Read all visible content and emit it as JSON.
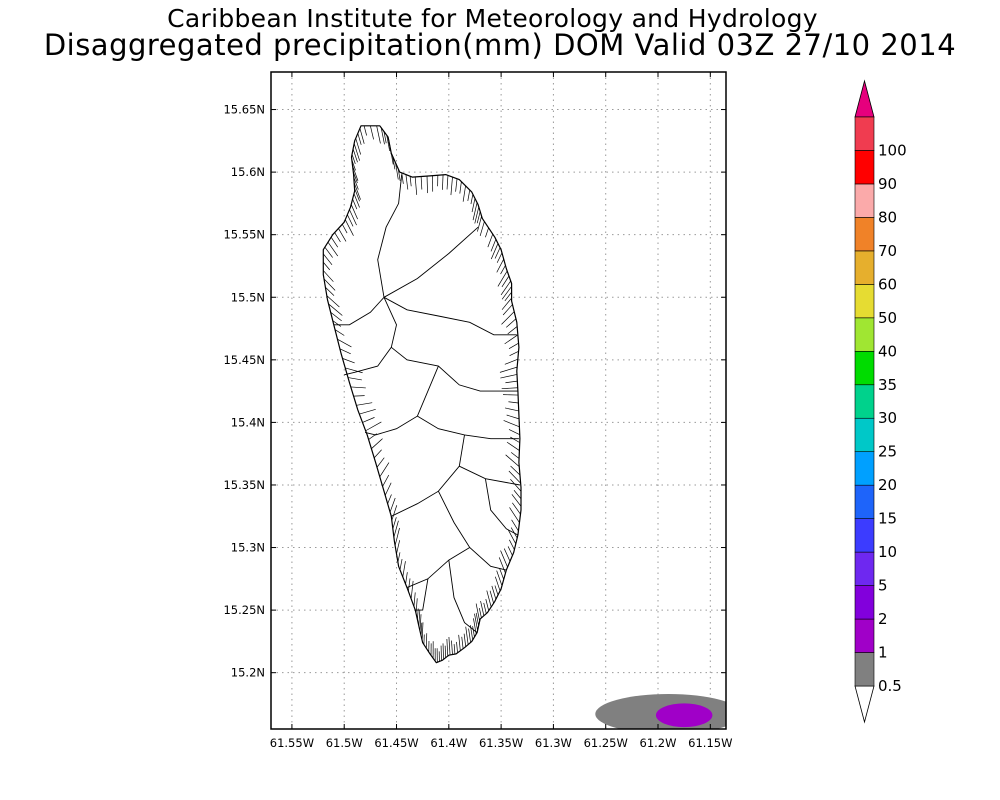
{
  "title": {
    "line1": "Caribbean Institute for Meteorology and Hydrology",
    "line2": "Disaggregated precipitation(mm) DOM Valid 03Z 27/10 2014"
  },
  "map": {
    "lon_range": [
      -61.57,
      -61.135
    ],
    "lat_range": [
      15.155,
      15.68
    ],
    "lon_ticks": [
      {
        "value": -61.55,
        "label": "61.55W"
      },
      {
        "value": -61.5,
        "label": "61.5W"
      },
      {
        "value": -61.45,
        "label": "61.45W"
      },
      {
        "value": -61.4,
        "label": "61.4W"
      },
      {
        "value": -61.35,
        "label": "61.35W"
      },
      {
        "value": -61.3,
        "label": "61.3W"
      },
      {
        "value": -61.25,
        "label": "61.25W"
      },
      {
        "value": -61.2,
        "label": "61.2W"
      },
      {
        "value": -61.15,
        "label": "61.15W"
      }
    ],
    "lat_ticks": [
      {
        "value": 15.2,
        "label": "15.2N"
      },
      {
        "value": 15.25,
        "label": "15.25N"
      },
      {
        "value": 15.3,
        "label": "15.3N"
      },
      {
        "value": 15.35,
        "label": "15.35N"
      },
      {
        "value": 15.4,
        "label": "15.4N"
      },
      {
        "value": 15.45,
        "label": "15.45N"
      },
      {
        "value": 15.5,
        "label": "15.5N"
      },
      {
        "value": 15.55,
        "label": "15.55N"
      },
      {
        "value": 15.6,
        "label": "15.6N"
      },
      {
        "value": 15.65,
        "label": "15.65N"
      }
    ],
    "grid": true,
    "island_outline": [
      [
        -61.484,
        15.637
      ],
      [
        -61.466,
        15.637
      ],
      [
        -61.458,
        15.628
      ],
      [
        -61.455,
        15.615
      ],
      [
        -61.447,
        15.6
      ],
      [
        -61.435,
        15.596
      ],
      [
        -61.418,
        15.597
      ],
      [
        -61.403,
        15.598
      ],
      [
        -61.39,
        15.594
      ],
      [
        -61.378,
        15.584
      ],
      [
        -61.372,
        15.574
      ],
      [
        -61.368,
        15.563
      ],
      [
        -61.356,
        15.548
      ],
      [
        -61.35,
        15.538
      ],
      [
        -61.345,
        15.523
      ],
      [
        -61.34,
        15.511
      ],
      [
        -61.34,
        15.497
      ],
      [
        -61.335,
        15.48
      ],
      [
        -61.333,
        15.46
      ],
      [
        -61.335,
        15.441
      ],
      [
        -61.334,
        15.425
      ],
      [
        -61.333,
        15.406
      ],
      [
        -61.332,
        15.387
      ],
      [
        -61.333,
        15.368
      ],
      [
        -61.331,
        15.348
      ],
      [
        -61.331,
        15.33
      ],
      [
        -61.334,
        15.31
      ],
      [
        -61.338,
        15.296
      ],
      [
        -61.345,
        15.282
      ],
      [
        -61.35,
        15.267
      ],
      [
        -61.356,
        15.257
      ],
      [
        -61.363,
        15.248
      ],
      [
        -61.37,
        15.243
      ],
      [
        -61.373,
        15.232
      ],
      [
        -61.378,
        15.225
      ],
      [
        -61.385,
        15.22
      ],
      [
        -61.393,
        15.215
      ],
      [
        -61.4,
        15.214
      ],
      [
        -61.406,
        15.21
      ],
      [
        -61.412,
        15.208
      ],
      [
        -61.418,
        15.215
      ],
      [
        -61.425,
        15.224
      ],
      [
        -61.428,
        15.235
      ],
      [
        -61.432,
        15.25
      ],
      [
        -61.44,
        15.268
      ],
      [
        -61.448,
        15.285
      ],
      [
        -61.452,
        15.305
      ],
      [
        -61.455,
        15.325
      ],
      [
        -61.462,
        15.345
      ],
      [
        -61.47,
        15.368
      ],
      [
        -61.478,
        15.39
      ],
      [
        -61.487,
        15.41
      ],
      [
        -61.495,
        15.432
      ],
      [
        -61.503,
        15.455
      ],
      [
        -61.51,
        15.478
      ],
      [
        -61.516,
        15.498
      ],
      [
        -61.52,
        15.518
      ],
      [
        -61.52,
        15.538
      ],
      [
        -61.511,
        15.55
      ],
      [
        -61.5,
        15.56
      ],
      [
        -61.494,
        15.572
      ],
      [
        -61.49,
        15.585
      ],
      [
        -61.491,
        15.598
      ],
      [
        -61.493,
        15.612
      ],
      [
        -61.49,
        15.625
      ]
    ],
    "internal_boundaries": [
      [
        [
          -61.445,
          15.598
        ],
        [
          -61.448,
          15.575
        ],
        [
          -61.46,
          15.556
        ],
        [
          -61.468,
          15.53
        ],
        [
          -61.462,
          15.5
        ]
      ],
      [
        [
          -61.462,
          15.5
        ],
        [
          -61.475,
          15.488
        ],
        [
          -61.495,
          15.478
        ],
        [
          -61.51,
          15.478
        ]
      ],
      [
        [
          -61.462,
          15.5
        ],
        [
          -61.43,
          15.515
        ],
        [
          -61.4,
          15.535
        ],
        [
          -61.372,
          15.556
        ]
      ],
      [
        [
          -61.462,
          15.5
        ],
        [
          -61.44,
          15.49
        ],
        [
          -61.41,
          15.485
        ],
        [
          -61.38,
          15.48
        ],
        [
          -61.357,
          15.47
        ],
        [
          -61.335,
          15.47
        ]
      ],
      [
        [
          -61.462,
          15.5
        ],
        [
          -61.45,
          15.478
        ],
        [
          -61.455,
          15.46
        ],
        [
          -61.468,
          15.445
        ],
        [
          -61.49,
          15.44
        ],
        [
          -61.5,
          15.438
        ]
      ],
      [
        [
          -61.455,
          15.46
        ],
        [
          -61.44,
          15.45
        ],
        [
          -61.41,
          15.445
        ],
        [
          -61.39,
          15.43
        ],
        [
          -61.37,
          15.425
        ],
        [
          -61.334,
          15.425
        ]
      ],
      [
        [
          -61.41,
          15.445
        ],
        [
          -61.42,
          15.425
        ],
        [
          -61.43,
          15.405
        ],
        [
          -61.45,
          15.395
        ],
        [
          -61.47,
          15.39
        ],
        [
          -61.48,
          15.392
        ]
      ],
      [
        [
          -61.43,
          15.405
        ],
        [
          -61.41,
          15.395
        ],
        [
          -61.385,
          15.39
        ],
        [
          -61.36,
          15.387
        ],
        [
          -61.333,
          15.387
        ]
      ],
      [
        [
          -61.385,
          15.39
        ],
        [
          -61.39,
          15.365
        ],
        [
          -61.41,
          15.345
        ],
        [
          -61.43,
          15.335
        ],
        [
          -61.455,
          15.325
        ]
      ],
      [
        [
          -61.39,
          15.365
        ],
        [
          -61.365,
          15.355
        ],
        [
          -61.332,
          15.35
        ]
      ],
      [
        [
          -61.41,
          15.345
        ],
        [
          -61.395,
          15.32
        ],
        [
          -61.38,
          15.3
        ],
        [
          -61.36,
          15.285
        ],
        [
          -61.345,
          15.282
        ]
      ],
      [
        [
          -61.38,
          15.3
        ],
        [
          -61.4,
          15.29
        ],
        [
          -61.42,
          15.275
        ],
        [
          -61.44,
          15.268
        ]
      ],
      [
        [
          -61.4,
          15.29
        ],
        [
          -61.395,
          15.26
        ],
        [
          -61.385,
          15.24
        ],
        [
          -61.373,
          15.232
        ]
      ],
      [
        [
          -61.42,
          15.275
        ],
        [
          -61.425,
          15.25
        ],
        [
          -61.432,
          15.25
        ]
      ],
      [
        [
          -61.365,
          15.355
        ],
        [
          -61.36,
          15.33
        ],
        [
          -61.345,
          15.315
        ],
        [
          -61.334,
          15.31
        ]
      ]
    ]
  },
  "precip_areas": [
    {
      "level_label": "0.5",
      "color": "#808080",
      "center": [
        -61.19,
        15.167
      ],
      "radii": [
        0.07,
        0.016
      ]
    },
    {
      "level_label": "1",
      "color": "#a000c8",
      "center": [
        -61.175,
        15.166
      ],
      "radii": [
        0.027,
        0.0095
      ]
    }
  ],
  "legend": {
    "bins": [
      {
        "label": "0.5",
        "color": "#808080"
      },
      {
        "label": "1",
        "color": "#a000c8"
      },
      {
        "label": "2",
        "color": "#8200dc"
      },
      {
        "label": "5",
        "color": "#6e28f0"
      },
      {
        "label": "10",
        "color": "#3c3cff"
      },
      {
        "label": "15",
        "color": "#1e64fa"
      },
      {
        "label": "20",
        "color": "#00a0ff"
      },
      {
        "label": "25",
        "color": "#00c8c8"
      },
      {
        "label": "30",
        "color": "#00d28c"
      },
      {
        "label": "35",
        "color": "#00dc00"
      },
      {
        "label": "40",
        "color": "#a0e632"
      },
      {
        "label": "50",
        "color": "#e6dc32"
      },
      {
        "label": "60",
        "color": "#e6af2d"
      },
      {
        "label": "70",
        "color": "#f08228"
      },
      {
        "label": "80",
        "color": "#fbaaaa"
      },
      {
        "label": "90",
        "color": "#ff0000"
      },
      {
        "label": "100",
        "color": "#f03c50"
      }
    ],
    "under_color": "#ffffff",
    "over_color": "#e6007d"
  }
}
